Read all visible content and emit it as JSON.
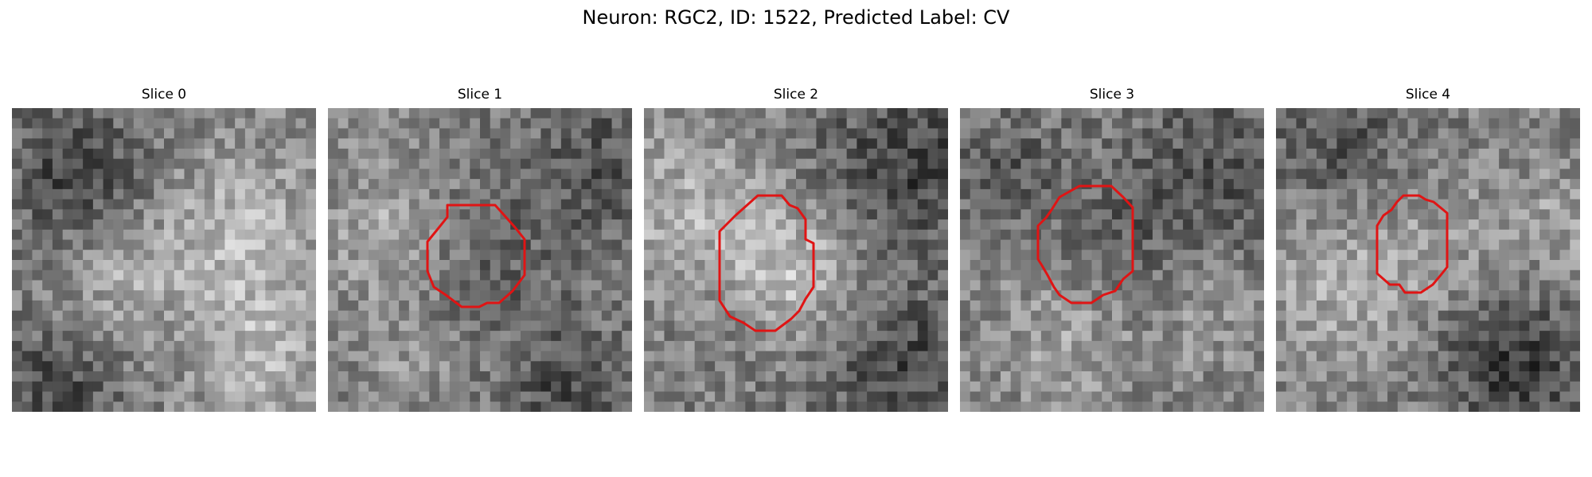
{
  "figure": {
    "title": "Neuron: RGC2, ID: 1522, Predicted Label: CV",
    "neuron_type": "RGC2",
    "neuron_id": 1522,
    "predicted_label": "CV"
  },
  "colors": {
    "background": "#ffffff",
    "outline": "#e01414"
  },
  "panels": [
    {
      "title": "Slice 0",
      "has_outline": false
    },
    {
      "title": "Slice 1",
      "has_outline": true
    },
    {
      "title": "Slice 2",
      "has_outline": true
    },
    {
      "title": "Slice 3",
      "has_outline": true
    },
    {
      "title": "Slice 4",
      "has_outline": true
    }
  ]
}
